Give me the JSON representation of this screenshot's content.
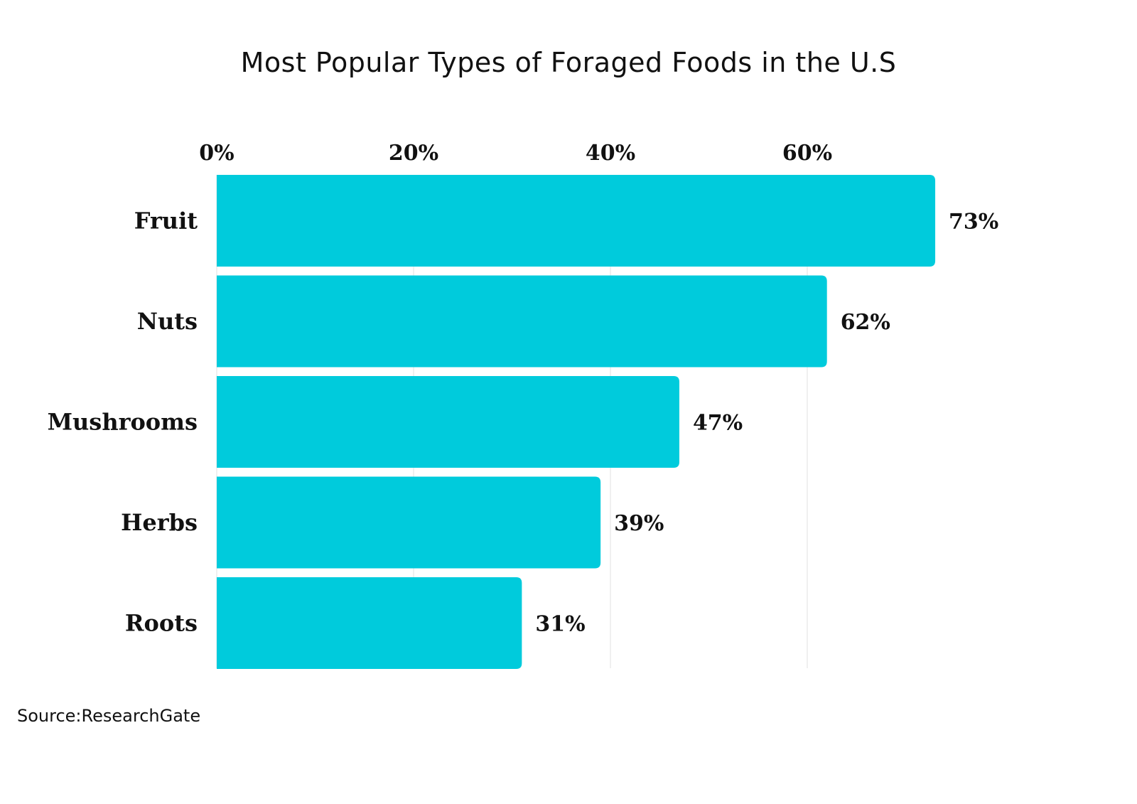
{
  "chart_data": {
    "type": "bar",
    "orientation": "horizontal",
    "title": "Most Popular Types of Foraged Foods in the U.S",
    "categories": [
      "Fruit",
      "Nuts",
      "Mushrooms",
      "Herbs",
      "Roots"
    ],
    "values": [
      73,
      62,
      47,
      39,
      31
    ],
    "value_labels": [
      "73%",
      "62%",
      "47%",
      "39%",
      "31%"
    ],
    "x_ticks": [
      0,
      20,
      40,
      60
    ],
    "x_tick_labels": [
      "0%",
      "20%",
      "40%",
      "60%"
    ],
    "xlim": [
      0,
      73
    ],
    "xlabel": "",
    "ylabel": "",
    "grid": true,
    "bar_color": "#00CBDC",
    "grid_color": "#EBEBEB",
    "source": "Source:ResearchGate"
  }
}
